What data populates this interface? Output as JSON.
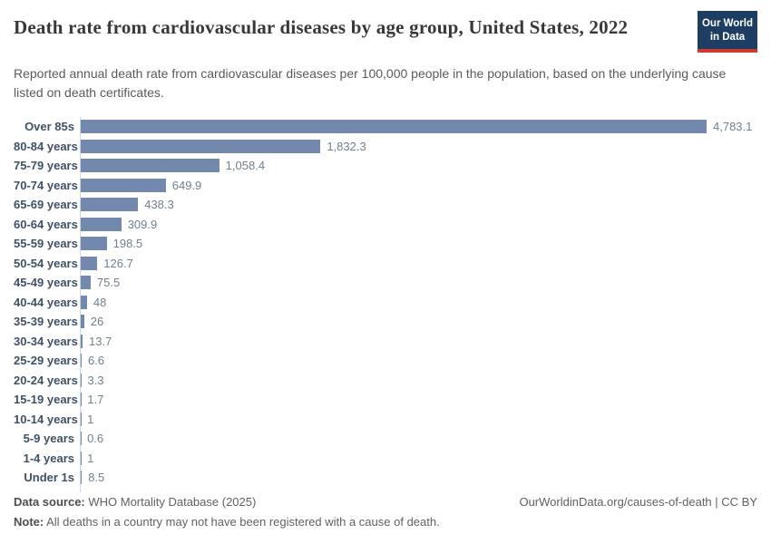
{
  "header": {
    "title": "Death rate from cardiovascular diseases by age group, United States, 2022",
    "subtitle": "Reported annual death rate from cardiovascular diseases per 100,000 people in the population, based on the underlying cause listed on death certificates.",
    "logo": {
      "line1": "Our World",
      "line2": "in Data"
    }
  },
  "chart_data": {
    "type": "bar",
    "orientation": "horizontal",
    "title": "Death rate from cardiovascular diseases by age group, United States, 2022",
    "xlabel": "",
    "ylabel": "",
    "xlim": [
      0,
      4783.1
    ],
    "grid": false,
    "legend": false,
    "categories": [
      "Over 85s",
      "80-84 years",
      "75-79 years",
      "70-74 years",
      "65-69 years",
      "60-64 years",
      "55-59 years",
      "50-54 years",
      "45-49 years",
      "40-44 years",
      "35-39 years",
      "30-34 years",
      "25-29 years",
      "20-24 years",
      "15-19 years",
      "10-14 years",
      "5-9 years",
      "1-4 years",
      "Under 1s"
    ],
    "values": [
      4783.1,
      1832.3,
      1058.4,
      649.9,
      438.3,
      309.9,
      198.5,
      126.7,
      75.5,
      48,
      26,
      13.7,
      6.6,
      3.3,
      1.7,
      1,
      0.6,
      1,
      8.5
    ],
    "value_labels": [
      "4,783.1",
      "1,832.3",
      "1,058.4",
      "649.9",
      "438.3",
      "309.9",
      "198.5",
      "126.7",
      "75.5",
      "48",
      "26",
      "13.7",
      "6.6",
      "3.3",
      "1.7",
      "1",
      "0.6",
      "1",
      "8.5"
    ],
    "bar_color": "#7289ad",
    "axis_color": "#ccd7e2"
  },
  "footer": {
    "data_source_label": "Data source:",
    "data_source_value": " WHO Mortality Database (2025)",
    "note_label": "Note:",
    "note_value": " All deaths in a country may not have been registered with a cause of death.",
    "link": "OurWorldinData.org/causes-of-death | CC BY"
  }
}
